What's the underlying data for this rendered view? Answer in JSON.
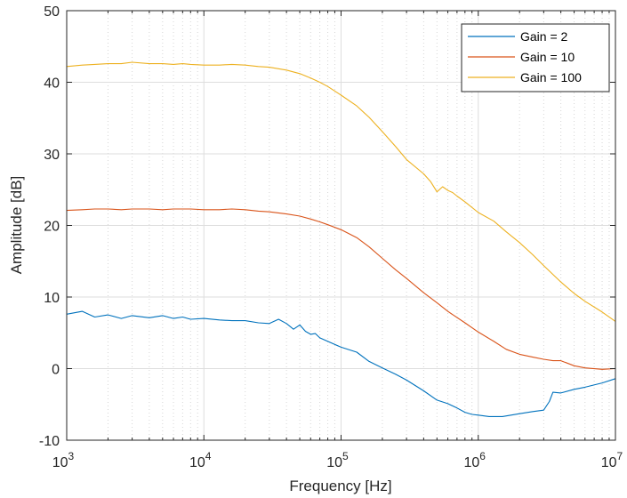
{
  "chart_data": {
    "type": "line",
    "title": "",
    "xlabel": "Frequency [Hz]",
    "ylabel": "Amplitude [dB]",
    "xscale": "log",
    "xlim": [
      1000,
      10000000
    ],
    "ylim": [
      -10,
      50
    ],
    "grid": "major and minor",
    "legend_position": "top-right",
    "x_ticks": [
      {
        "value": 1000,
        "base": "10",
        "exp": "3"
      },
      {
        "value": 10000,
        "base": "10",
        "exp": "4"
      },
      {
        "value": 100000,
        "base": "10",
        "exp": "5"
      },
      {
        "value": 1000000,
        "base": "10",
        "exp": "6"
      },
      {
        "value": 10000000,
        "base": "10",
        "exp": "7"
      }
    ],
    "y_ticks": [
      {
        "value": -10,
        "label": "-10"
      },
      {
        "value": 0,
        "label": "0"
      },
      {
        "value": 10,
        "label": "10"
      },
      {
        "value": 20,
        "label": "20"
      },
      {
        "value": 30,
        "label": "30"
      },
      {
        "value": 40,
        "label": "40"
      },
      {
        "value": 50,
        "label": "50"
      }
    ],
    "series": [
      {
        "name": "Gain = 2",
        "color": "#0072BD",
        "x": [
          1000,
          1300,
          1600,
          2000,
          2500,
          3000,
          4000,
          5000,
          6000,
          7000,
          8000,
          10000,
          13000,
          16000,
          20000,
          25000,
          30000,
          35000,
          40000,
          45000,
          50000,
          55000,
          60000,
          65000,
          70000,
          80000,
          100000,
          130000,
          160000,
          200000,
          250000,
          300000,
          400000,
          500000,
          600000,
          700000,
          800000,
          900000,
          1000000,
          1200000,
          1500000,
          2000000,
          2500000,
          3000000,
          3300000,
          3500000,
          4000000,
          5000000,
          6000000,
          8000000,
          10000000
        ],
        "y": [
          7.6,
          8.0,
          7.2,
          7.5,
          7.0,
          7.4,
          7.1,
          7.4,
          7.0,
          7.2,
          6.9,
          7.0,
          6.8,
          6.7,
          6.7,
          6.4,
          6.3,
          6.9,
          6.3,
          5.5,
          6.1,
          5.2,
          4.8,
          4.9,
          4.3,
          3.8,
          3.0,
          2.3,
          1.0,
          0.1,
          -0.8,
          -1.6,
          -3.1,
          -4.4,
          -4.9,
          -5.5,
          -6.1,
          -6.4,
          -6.5,
          -6.7,
          -6.7,
          -6.3,
          -6.0,
          -5.8,
          -4.6,
          -3.3,
          -3.4,
          -2.9,
          -2.6,
          -2.0,
          -1.4
        ]
      },
      {
        "name": "Gain = 10",
        "color": "#D95319",
        "x": [
          1000,
          1300,
          1600,
          2000,
          2500,
          3000,
          4000,
          5000,
          6000,
          7000,
          8000,
          10000,
          13000,
          16000,
          20000,
          25000,
          30000,
          40000,
          50000,
          60000,
          70000,
          80000,
          100000,
          130000,
          160000,
          200000,
          250000,
          300000,
          400000,
          500000,
          600000,
          800000,
          1000000,
          1300000,
          1600000,
          2000000,
          2500000,
          3000000,
          3500000,
          4000000,
          5000000,
          6000000,
          8000000,
          10000000
        ],
        "y": [
          22.1,
          22.2,
          22.3,
          22.3,
          22.2,
          22.3,
          22.3,
          22.2,
          22.3,
          22.3,
          22.3,
          22.2,
          22.2,
          22.3,
          22.2,
          22.0,
          21.9,
          21.6,
          21.3,
          20.9,
          20.5,
          20.1,
          19.4,
          18.3,
          17.0,
          15.4,
          13.8,
          12.6,
          10.6,
          9.2,
          8.0,
          6.4,
          5.1,
          3.8,
          2.7,
          2.0,
          1.6,
          1.3,
          1.1,
          1.1,
          0.4,
          0.1,
          -0.1,
          0.0
        ]
      },
      {
        "name": "Gain = 100",
        "color": "#EDB120",
        "x": [
          1000,
          1300,
          1600,
          2000,
          2500,
          3000,
          4000,
          5000,
          6000,
          7000,
          8000,
          10000,
          13000,
          16000,
          20000,
          25000,
          30000,
          40000,
          50000,
          60000,
          70000,
          80000,
          100000,
          130000,
          160000,
          200000,
          250000,
          300000,
          400000,
          450000,
          500000,
          550000,
          600000,
          650000,
          700000,
          800000,
          1000000,
          1300000,
          1600000,
          2000000,
          2500000,
          3000000,
          4000000,
          5000000,
          6000000,
          8000000,
          10000000
        ],
        "y": [
          42.2,
          42.4,
          42.5,
          42.6,
          42.6,
          42.8,
          42.6,
          42.6,
          42.5,
          42.6,
          42.5,
          42.4,
          42.4,
          42.5,
          42.4,
          42.2,
          42.1,
          41.7,
          41.2,
          40.6,
          40.0,
          39.4,
          38.2,
          36.7,
          35.1,
          33.1,
          31.0,
          29.2,
          27.2,
          26.1,
          24.7,
          25.4,
          24.9,
          24.6,
          24.1,
          23.3,
          21.8,
          20.6,
          19.1,
          17.6,
          15.9,
          14.4,
          12.1,
          10.5,
          9.4,
          7.9,
          6.6
        ]
      }
    ]
  }
}
